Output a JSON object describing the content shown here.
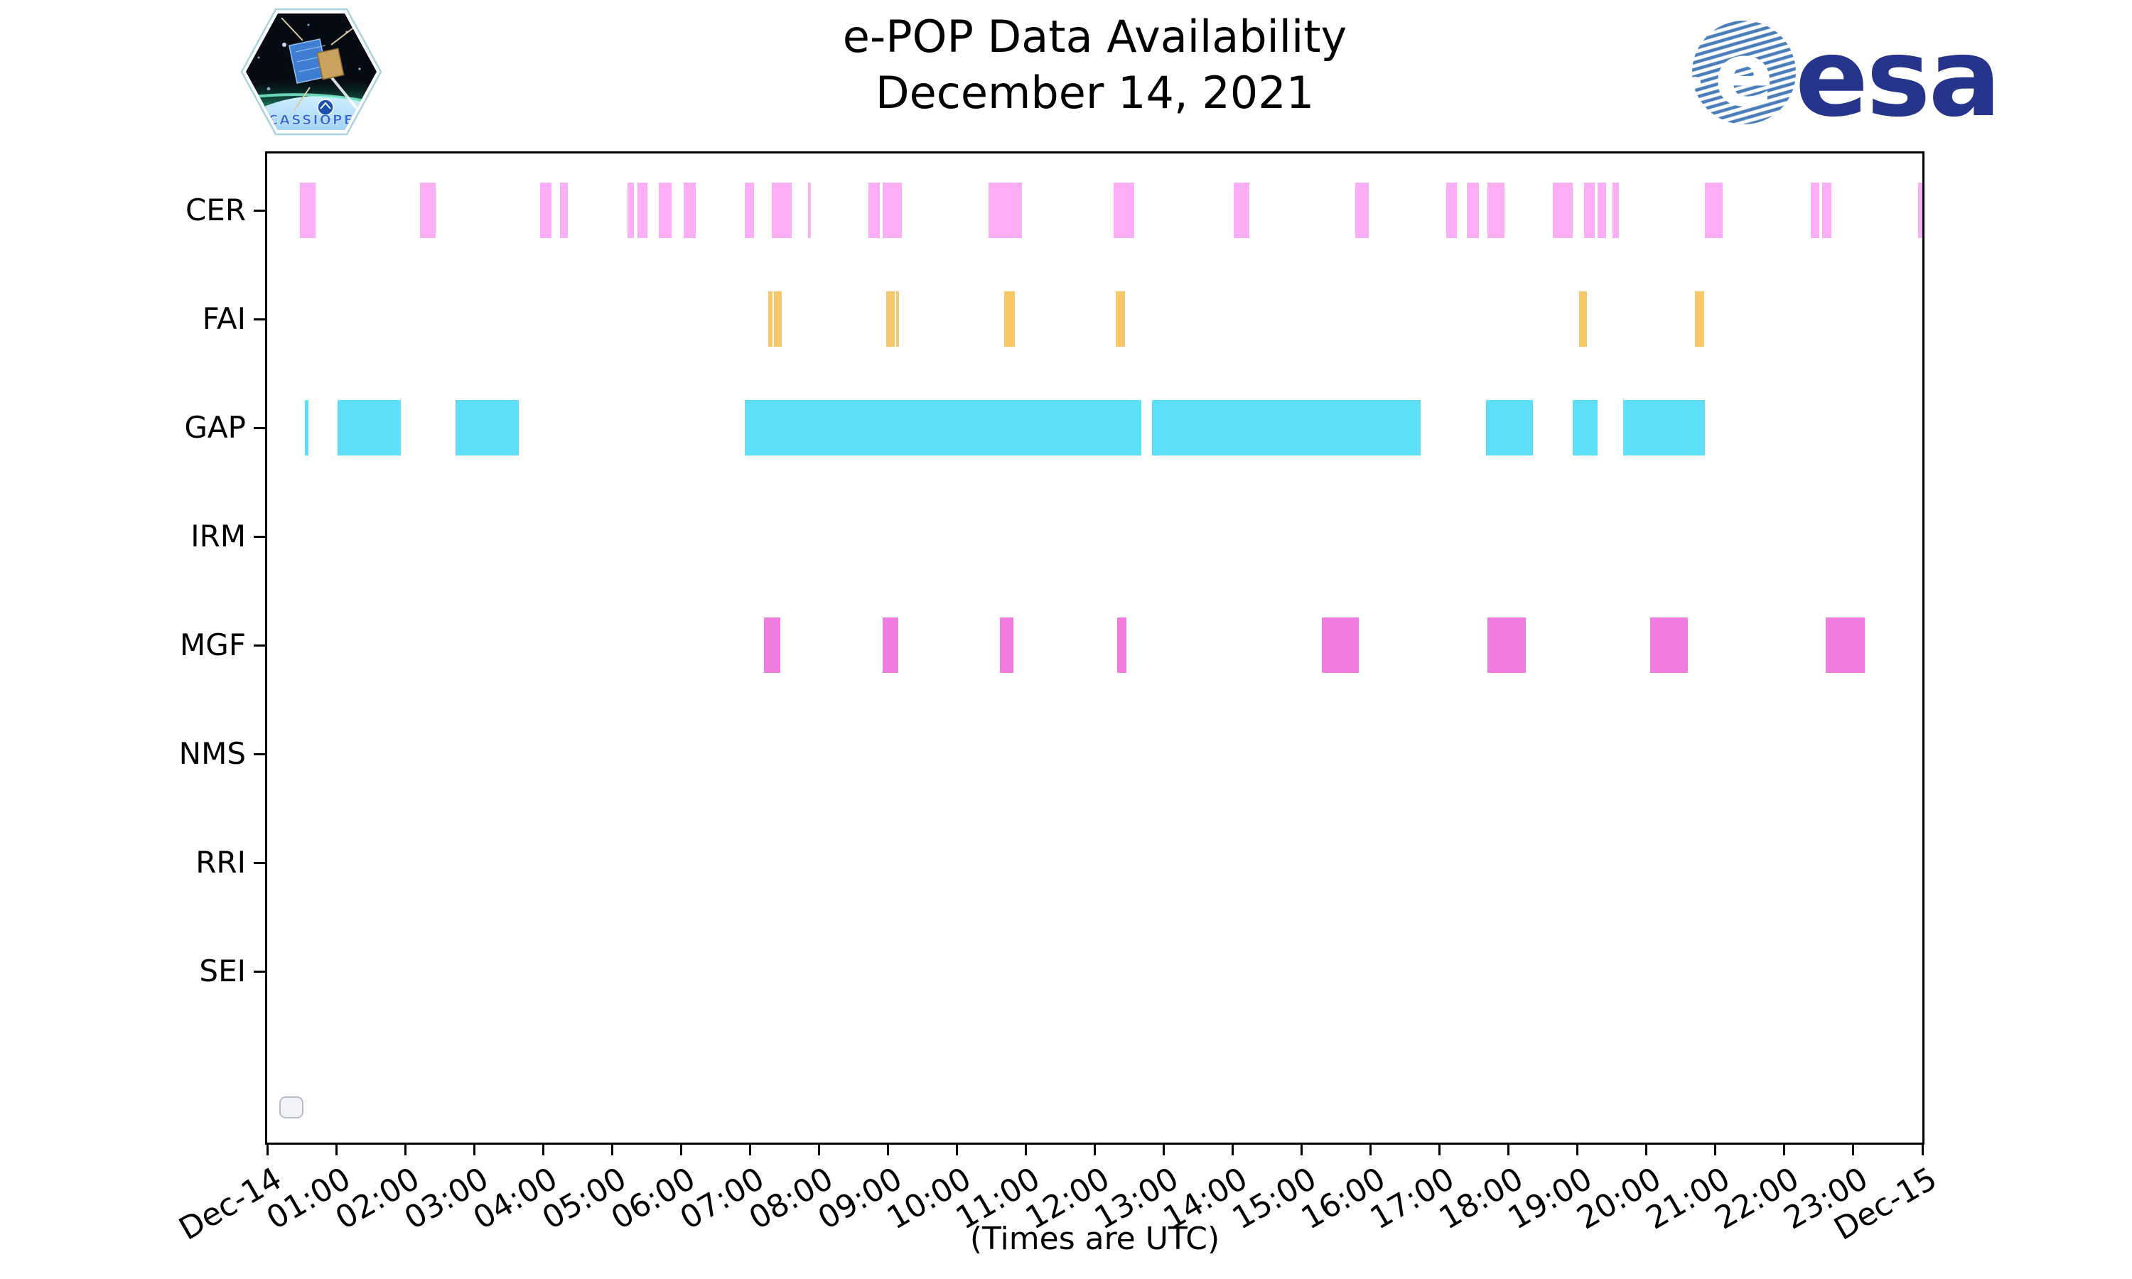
{
  "title": {
    "line1": "e-POP Data Availability",
    "line2": "December 14, 2021"
  },
  "logos": {
    "cassiope_text": "CASSIOPE",
    "esa_text": "esa",
    "esa_globe_letter": "e"
  },
  "legend": {
    "entries": []
  },
  "chart_data": {
    "type": "bar",
    "subtype": "gantt-availability-timeline",
    "title": "e-POP Data Availability — December 14, 2021",
    "xlabel": "(Times are UTC)",
    "x_axis": {
      "hours_span": 24,
      "tick_labels": [
        "Dec-14",
        "01:00",
        "02:00",
        "03:00",
        "04:00",
        "05:00",
        "06:00",
        "07:00",
        "08:00",
        "09:00",
        "10:00",
        "11:00",
        "12:00",
        "13:00",
        "14:00",
        "15:00",
        "16:00",
        "17:00",
        "18:00",
        "19:00",
        "20:00",
        "21:00",
        "22:00",
        "23:00",
        "Dec-15"
      ]
    },
    "rows": [
      "CER",
      "FAI",
      "GAP",
      "IRM",
      "MGF",
      "NMS",
      "RRI",
      "SEI"
    ],
    "series": [
      {
        "name": "CER",
        "color": "#FCAEF6",
        "intervals": [
          [
            0.47,
            0.7
          ],
          [
            2.22,
            2.44
          ],
          [
            3.96,
            4.12
          ],
          [
            4.25,
            4.36
          ],
          [
            5.22,
            5.32
          ],
          [
            5.37,
            5.51
          ],
          [
            5.68,
            5.86
          ],
          [
            6.04,
            6.21
          ],
          [
            6.93,
            7.06
          ],
          [
            7.32,
            7.6
          ],
          [
            7.84,
            7.88
          ],
          [
            8.72,
            8.88
          ],
          [
            8.92,
            9.2
          ],
          [
            10.46,
            10.94
          ],
          [
            12.27,
            12.57
          ],
          [
            14.01,
            14.24
          ],
          [
            15.78,
            15.97
          ],
          [
            17.1,
            17.25
          ],
          [
            17.39,
            17.57
          ],
          [
            17.69,
            17.94
          ],
          [
            18.64,
            18.93
          ],
          [
            19.1,
            19.25
          ],
          [
            19.29,
            19.41
          ],
          [
            19.51,
            19.6
          ],
          [
            20.85,
            21.1
          ],
          [
            22.38,
            22.51
          ],
          [
            22.55,
            22.68
          ],
          [
            23.94,
            24.0
          ]
        ]
      },
      {
        "name": "FAI",
        "color": "#F9C869",
        "intervals": [
          [
            7.26,
            7.33
          ],
          [
            7.35,
            7.46
          ],
          [
            8.98,
            9.1
          ],
          [
            9.12,
            9.16
          ],
          [
            10.69,
            10.84
          ],
          [
            12.3,
            12.44
          ],
          [
            19.02,
            19.14
          ],
          [
            20.7,
            20.84
          ]
        ]
      },
      {
        "name": "GAP",
        "color": "#5CDFF7",
        "intervals": [
          [
            0.55,
            0.6
          ],
          [
            1.02,
            1.94
          ],
          [
            2.73,
            3.65
          ],
          [
            6.92,
            12.68
          ],
          [
            12.83,
            16.72
          ],
          [
            17.67,
            18.35
          ],
          [
            18.93,
            19.29
          ],
          [
            19.66,
            20.85
          ]
        ]
      },
      {
        "name": "IRM",
        "color": null,
        "intervals": []
      },
      {
        "name": "MGF",
        "color": "#F07CE0",
        "intervals": [
          [
            7.2,
            7.44
          ],
          [
            8.92,
            9.15
          ],
          [
            10.62,
            10.82
          ],
          [
            12.32,
            12.46
          ],
          [
            15.29,
            15.83
          ],
          [
            17.69,
            18.25
          ],
          [
            20.05,
            20.6
          ],
          [
            22.6,
            23.17
          ]
        ]
      },
      {
        "name": "NMS",
        "color": null,
        "intervals": []
      },
      {
        "name": "RRI",
        "color": null,
        "intervals": []
      },
      {
        "name": "SEI",
        "color": null,
        "intervals": []
      }
    ]
  }
}
